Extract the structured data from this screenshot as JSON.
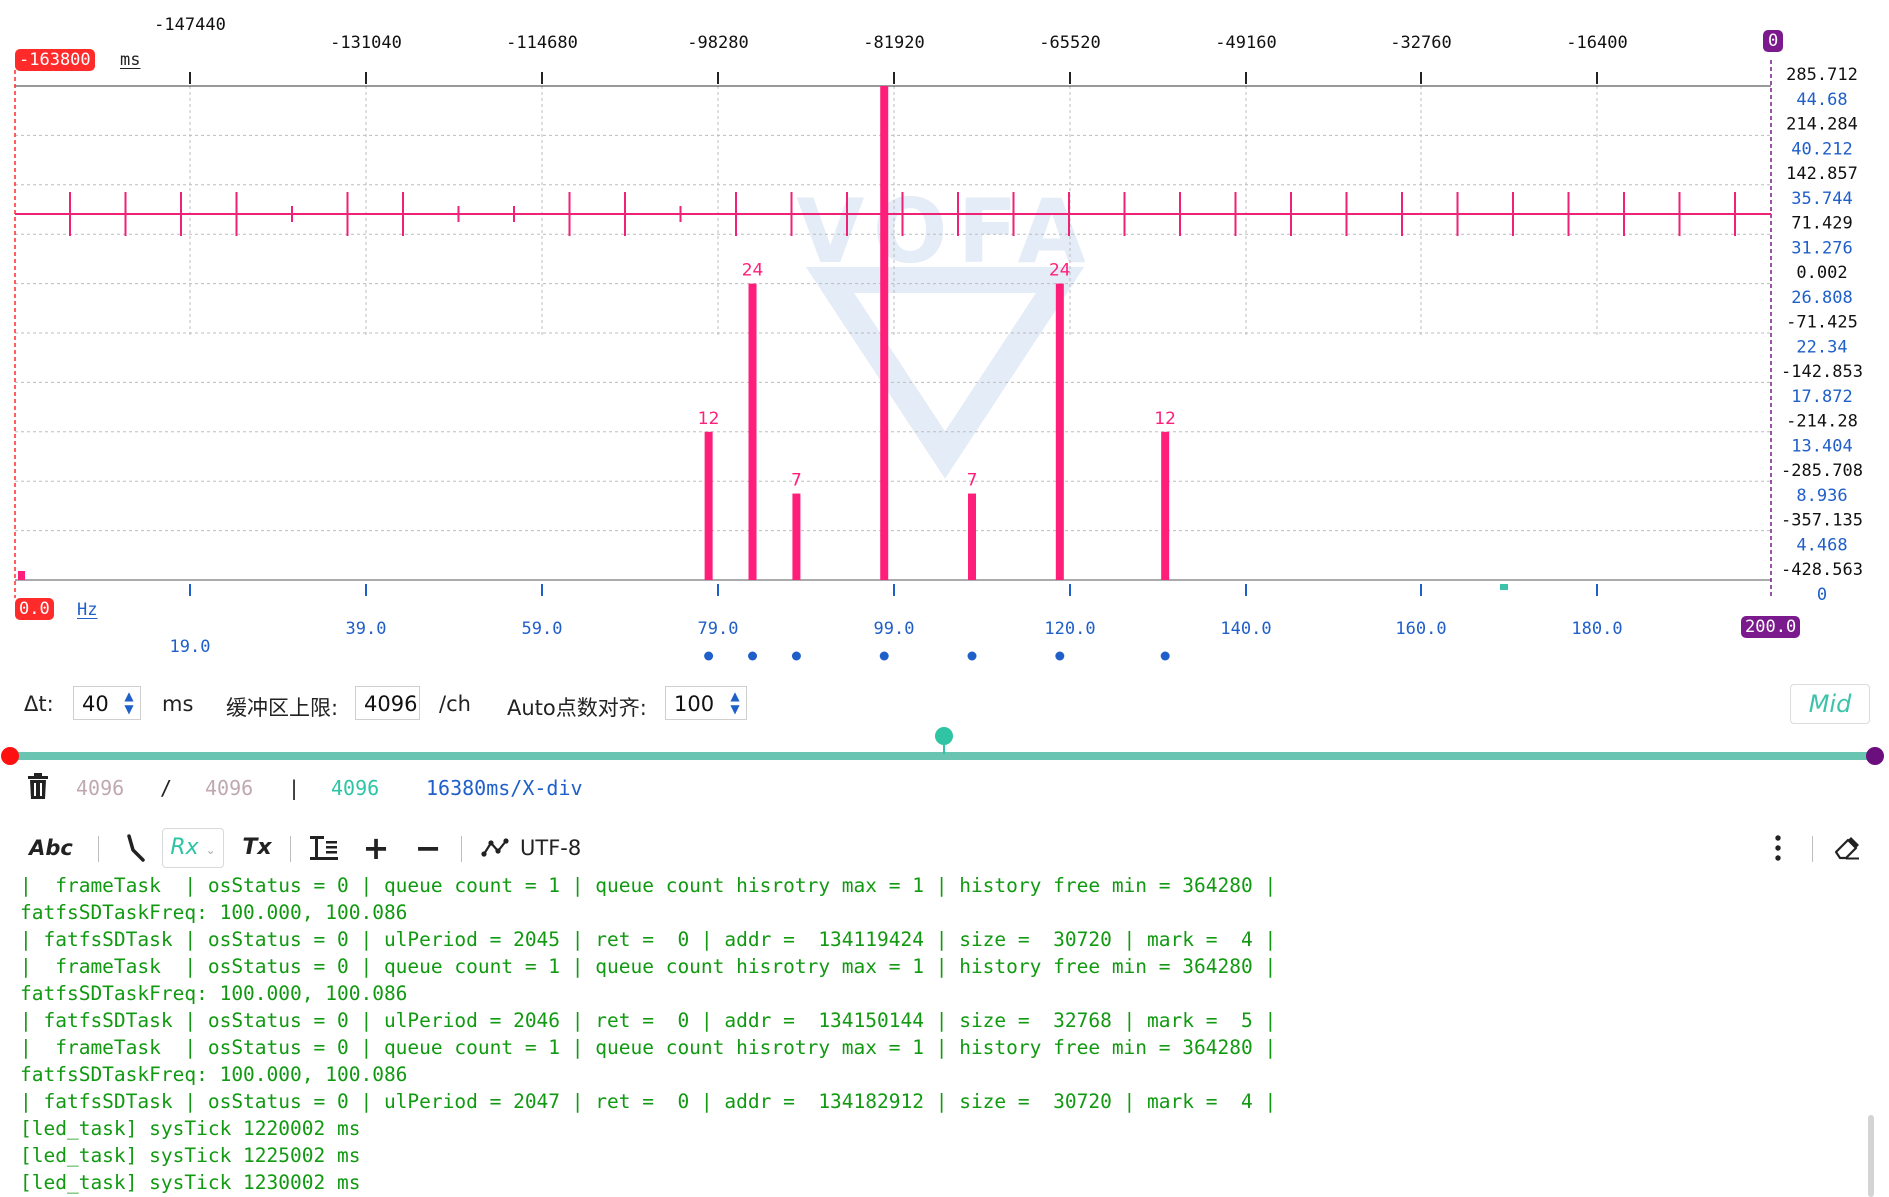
{
  "scope": {
    "time_offset_badge": "-163800",
    "time_unit": "ms",
    "freq_start_badge": "0.0",
    "freq_unit": "Hz",
    "freq_end_badge": "200.0",
    "channel_badge": "0",
    "top_ticks": [
      "-147440",
      "-131040",
      "-114680",
      "-98280",
      "-81920",
      "-65520",
      "-49160",
      "-32760",
      "-16400"
    ],
    "bottom_ticks": [
      "19.0",
      "39.0",
      "59.0",
      "79.0",
      "99.0",
      "120.0",
      "140.0",
      "160.0",
      "180.0"
    ],
    "right_axis_black": [
      "285.712",
      "214.284",
      "142.857",
      "71.429",
      "0.002",
      "-71.425",
      "-142.853",
      "-214.28",
      "-285.708",
      "-357.135",
      "-428.563"
    ],
    "right_axis_blue": [
      "44.68",
      "40.212",
      "35.744",
      "31.276",
      "26.808",
      "22.34",
      "17.872",
      "13.404",
      "8.936",
      "4.468",
      "0"
    ],
    "watermark": "VOFA",
    "waveform_color": "#ee2277",
    "fft_color": "#ff1f7a",
    "accent_blue": "#1f5fc9",
    "accent_teal": "#3cc3a9",
    "accent_purple": "#7a1a8c",
    "accent_red": "#ff2a2a",
    "spectrum_bars": [
      {
        "freq": 79.0,
        "height_label": "12",
        "level": 12
      },
      {
        "freq": 84.0,
        "height_label": "24",
        "level": 24
      },
      {
        "freq": 89.0,
        "height_label": "7",
        "level": 7
      },
      {
        "freq": 99.0,
        "height_label": "",
        "level": 40
      },
      {
        "freq": 109.0,
        "height_label": "7",
        "level": 7
      },
      {
        "freq": 119.0,
        "height_label": "24",
        "level": 24
      },
      {
        "freq": 131.0,
        "height_label": "12",
        "level": 12
      }
    ]
  },
  "controls": {
    "dt_label": "Δt:",
    "dt_value": "40",
    "dt_unit": "ms",
    "buffer_label": "缓冲区上限:",
    "buffer_value": "4096",
    "buffer_unit": "/ch",
    "auto_label": "Auto点数对齐:",
    "auto_value": "100",
    "mid_button": "Mid"
  },
  "buffer": {
    "current": "4096",
    "slash": "/",
    "total": "4096",
    "bar": "|",
    "count": "4096",
    "per_div": "16380ms/X-div"
  },
  "toolbar": {
    "abc": "Abc",
    "rx": "Rx",
    "tx": "Tx",
    "encoding": "UTF-8",
    "plus": "+",
    "minus": "−"
  },
  "log": [
    "|  frameTask  | osStatus = 0 | queue count = 1 | queue count hisrotry max = 1 | history free min = 364280 |",
    "fatfsSDTaskFreq: 100.000, 100.086",
    "| fatfsSDTask | osStatus = 0 | ulPeriod = 2045 | ret =  0 | addr =  134119424 | size =  30720 | mark =  4 |",
    "|  frameTask  | osStatus = 0 | queue count = 1 | queue count hisrotry max = 1 | history free min = 364280 |",
    "fatfsSDTaskFreq: 100.000, 100.086",
    "| fatfsSDTask | osStatus = 0 | ulPeriod = 2046 | ret =  0 | addr =  134150144 | size =  32768 | mark =  5 |",
    "|  frameTask  | osStatus = 0 | queue count = 1 | queue count hisrotry max = 1 | history free min = 364280 |",
    "fatfsSDTaskFreq: 100.000, 100.086",
    "| fatfsSDTask | osStatus = 0 | ulPeriod = 2047 | ret =  0 | addr =  134182912 | size =  30720 | mark =  4 |",
    "[led_task] sysTick 1220002 ms",
    "[led_task] sysTick 1225002 ms",
    "[led_task] sysTick 1230002 ms"
  ]
}
